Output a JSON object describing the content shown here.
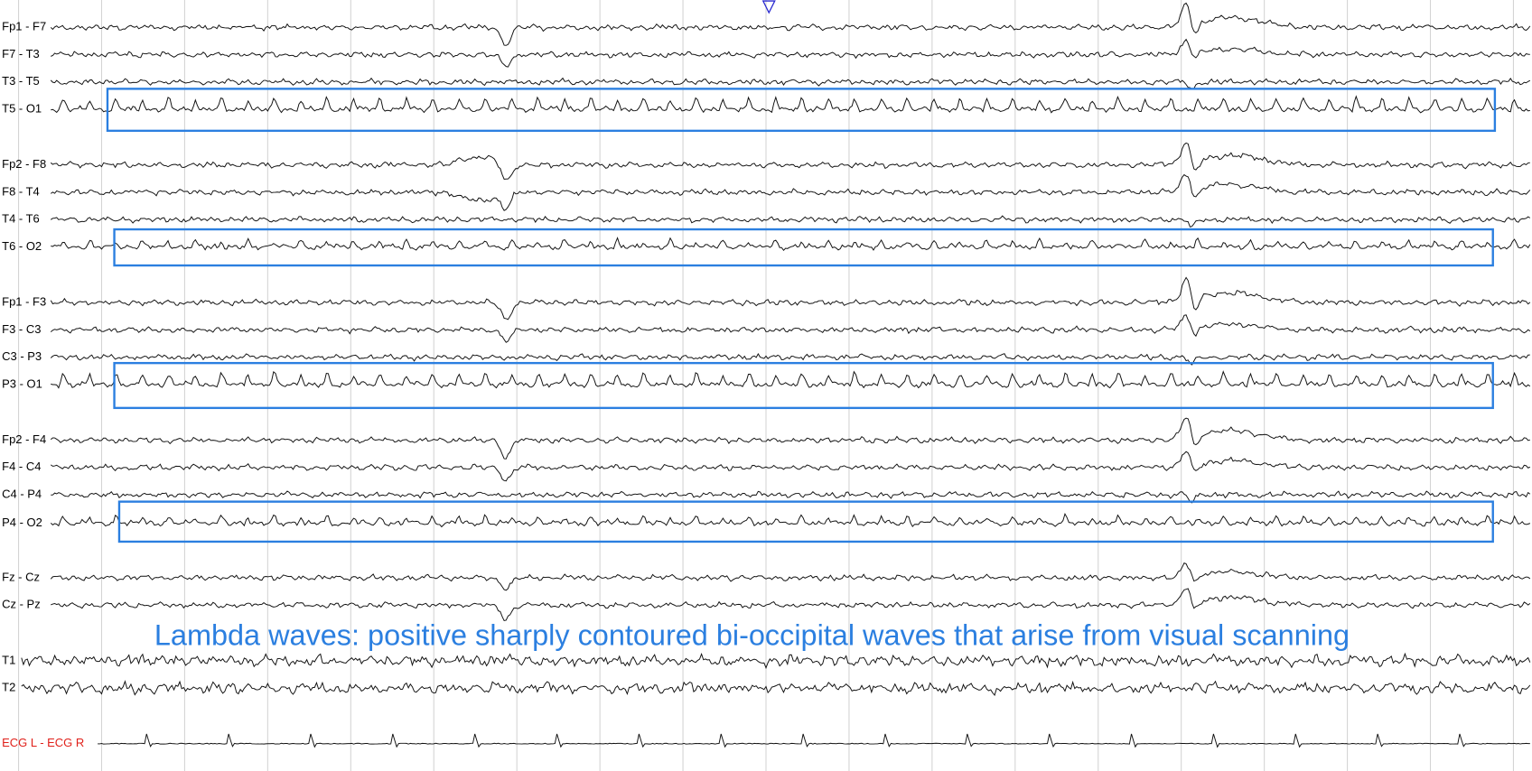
{
  "channels": [
    "Fp1 - F7",
    "F7 - T3",
    "T3 - T5",
    "T5 - O1",
    "Fp2 - F8",
    "F8 - T4",
    "T4 - T6",
    "T6 - O2",
    "Fp1 - F3",
    "F3 - C3",
    "C3 - P3",
    "P3 - O1",
    "Fp2 - F4",
    "F4 - C4",
    "C4 - P4",
    "P4 - O2",
    "Fz - Cz",
    "Cz - Pz",
    "T1",
    "T2",
    "ECG L - ECG R"
  ],
  "annotation": "Lambda waves: positive sharply contoured bi-occipital waves that arise from visual scanning"
}
